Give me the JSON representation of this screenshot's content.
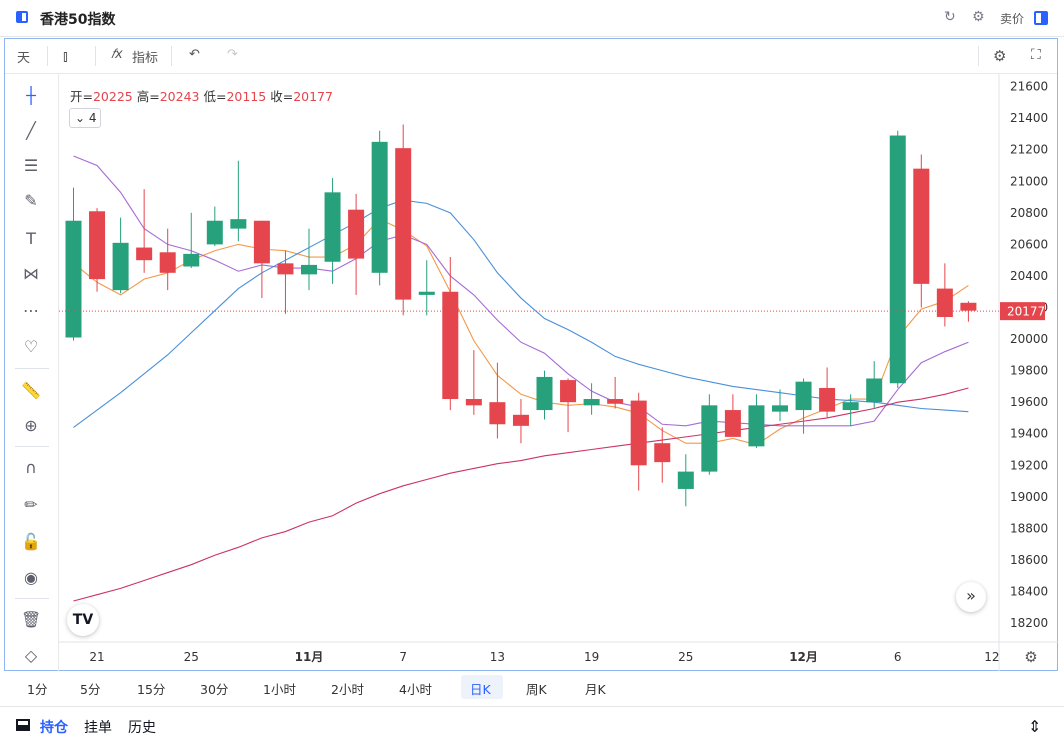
{
  "header": {
    "title": "香港50指数",
    "sell_label": "卖价"
  },
  "toolbar": {
    "interval": "天",
    "indicators_label": "指标"
  },
  "legend": {
    "open_label": "开=",
    "open": "20225",
    "high_label": "高=",
    "high": "20243",
    "low_label": "低=",
    "low": "20115",
    "close_label": "收=",
    "close": "20177",
    "ma_count": "4"
  },
  "tv_logo": "TV",
  "periods": [
    "1分",
    "5分",
    "15分",
    "30分",
    "1小时",
    "2小时",
    "4小时",
    "日K",
    "周K",
    "月K"
  ],
  "active_period": "日K",
  "bottom_tabs": [
    "持仓",
    "挂单",
    "历史"
  ],
  "colors": {
    "up": "#26a17b",
    "down": "#e5454c",
    "ma_orange": "#f2994a",
    "ma_purple": "#a66bd6",
    "ma_blue": "#4a90d9",
    "ma_crimson": "#cc3366",
    "accent": "#2962ff"
  },
  "chart_data": {
    "type": "candlestick",
    "y_ticks": [
      18200,
      18400,
      18600,
      18800,
      19000,
      19200,
      19400,
      19600,
      19800,
      20000,
      20200,
      20400,
      20600,
      20800,
      21000,
      21200,
      21400,
      21600
    ],
    "ylim": [
      18080,
      21680
    ],
    "x_labels": [
      {
        "i": 1,
        "label": "21",
        "bold": false
      },
      {
        "i": 5,
        "label": "25",
        "bold": false
      },
      {
        "i": 10,
        "label": "11月",
        "bold": true
      },
      {
        "i": 14,
        "label": "7",
        "bold": false
      },
      {
        "i": 18,
        "label": "13",
        "bold": false
      },
      {
        "i": 22,
        "label": "19",
        "bold": false
      },
      {
        "i": 26,
        "label": "25",
        "bold": false
      },
      {
        "i": 31,
        "label": "12月",
        "bold": true
      },
      {
        "i": 35,
        "label": "6",
        "bold": false
      },
      {
        "i": 39,
        "label": "12",
        "bold": false
      }
    ],
    "current_price": "20177",
    "candles": [
      {
        "o": 20010,
        "h": 20960,
        "l": 19990,
        "c": 20750
      },
      {
        "o": 20810,
        "h": 20830,
        "l": 20300,
        "c": 20380
      },
      {
        "o": 20310,
        "h": 20770,
        "l": 20290,
        "c": 20610
      },
      {
        "o": 20580,
        "h": 20950,
        "l": 20420,
        "c": 20500
      },
      {
        "o": 20550,
        "h": 20700,
        "l": 20310,
        "c": 20420
      },
      {
        "o": 20460,
        "h": 20800,
        "l": 20450,
        "c": 20540
      },
      {
        "o": 20600,
        "h": 20840,
        "l": 20590,
        "c": 20750
      },
      {
        "o": 20700,
        "h": 21130,
        "l": 20620,
        "c": 20760
      },
      {
        "o": 20750,
        "h": 20750,
        "l": 20260,
        "c": 20480
      },
      {
        "o": 20480,
        "h": 20560,
        "l": 20160,
        "c": 20410
      },
      {
        "o": 20410,
        "h": 20700,
        "l": 20310,
        "c": 20470
      },
      {
        "o": 20490,
        "h": 21020,
        "l": 20350,
        "c": 20930
      },
      {
        "o": 20820,
        "h": 20920,
        "l": 20280,
        "c": 20510
      },
      {
        "o": 20420,
        "h": 21320,
        "l": 20340,
        "c": 21250
      },
      {
        "o": 21210,
        "h": 21360,
        "l": 20150,
        "c": 20250
      },
      {
        "o": 20280,
        "h": 20500,
        "l": 20150,
        "c": 20300
      },
      {
        "o": 20300,
        "h": 20520,
        "l": 19550,
        "c": 19620
      },
      {
        "o": 19620,
        "h": 19930,
        "l": 19520,
        "c": 19580
      },
      {
        "o": 19600,
        "h": 19850,
        "l": 19370,
        "c": 19460
      },
      {
        "o": 19520,
        "h": 19620,
        "l": 19340,
        "c": 19450
      },
      {
        "o": 19550,
        "h": 19800,
        "l": 19490,
        "c": 19760
      },
      {
        "o": 19740,
        "h": 19750,
        "l": 19410,
        "c": 19600
      },
      {
        "o": 19580,
        "h": 19720,
        "l": 19520,
        "c": 19620
      },
      {
        "o": 19620,
        "h": 19760,
        "l": 19560,
        "c": 19590
      },
      {
        "o": 19610,
        "h": 19660,
        "l": 19040,
        "c": 19200
      },
      {
        "o": 19340,
        "h": 19440,
        "l": 19090,
        "c": 19220
      },
      {
        "o": 19050,
        "h": 19270,
        "l": 18940,
        "c": 19160
      },
      {
        "o": 19160,
        "h": 19650,
        "l": 19140,
        "c": 19580
      },
      {
        "o": 19550,
        "h": 19650,
        "l": 19410,
        "c": 19380
      },
      {
        "o": 19320,
        "h": 19650,
        "l": 19310,
        "c": 19580
      },
      {
        "o": 19540,
        "h": 19680,
        "l": 19480,
        "c": 19580
      },
      {
        "o": 19550,
        "h": 19750,
        "l": 19400,
        "c": 19730
      },
      {
        "o": 19690,
        "h": 19820,
        "l": 19500,
        "c": 19540
      },
      {
        "o": 19550,
        "h": 19650,
        "l": 19450,
        "c": 19600
      },
      {
        "o": 19600,
        "h": 19860,
        "l": 19560,
        "c": 19750
      },
      {
        "o": 19720,
        "h": 21320,
        "l": 19690,
        "c": 21290
      },
      {
        "o": 21080,
        "h": 21170,
        "l": 20200,
        "c": 20350
      },
      {
        "o": 20320,
        "h": 20480,
        "l": 20080,
        "c": 20140
      },
      {
        "o": 20230,
        "h": 20240,
        "l": 20110,
        "c": 20180
      }
    ],
    "ma_series": [
      {
        "key": "ma_orange",
        "values": [
          20480,
          20360,
          20280,
          20380,
          20420,
          20500,
          20560,
          20600,
          20570,
          20560,
          20520,
          20520,
          20600,
          20760,
          20690,
          20590,
          20300,
          19990,
          19770,
          19650,
          19600,
          19580,
          19590,
          19570,
          19530,
          19420,
          19340,
          19340,
          19370,
          19330,
          19430,
          19500,
          19560,
          19620,
          19620,
          20010,
          20190,
          20240,
          20340
        ]
      },
      {
        "key": "ma_purple",
        "values": [
          21160,
          21100,
          20930,
          20700,
          20600,
          20560,
          20500,
          20430,
          20470,
          20450,
          20450,
          20430,
          20510,
          20620,
          20660,
          20600,
          20400,
          20280,
          20120,
          19980,
          19910,
          19780,
          19670,
          19600,
          19570,
          19460,
          19450,
          19480,
          19470,
          19460,
          19450,
          19450,
          19450,
          19450,
          19480,
          19680,
          19850,
          19920,
          19980
        ]
      },
      {
        "key": "ma_blue",
        "values": [
          19440,
          19550,
          19660,
          19780,
          19900,
          20040,
          20180,
          20320,
          20420,
          20500,
          20580,
          20660,
          20740,
          20830,
          20880,
          20860,
          20800,
          20630,
          20420,
          20260,
          20130,
          20060,
          19980,
          19890,
          19840,
          19800,
          19760,
          19730,
          19700,
          19680,
          19660,
          19640,
          19620,
          19610,
          19600,
          19580,
          19560,
          19550,
          19540
        ]
      },
      {
        "key": "ma_crimson",
        "values": [
          18340,
          18380,
          18420,
          18470,
          18520,
          18570,
          18630,
          18680,
          18740,
          18780,
          18840,
          18880,
          18960,
          19020,
          19070,
          19110,
          19150,
          19180,
          19210,
          19230,
          19260,
          19280,
          19300,
          19320,
          19340,
          19360,
          19380,
          19400,
          19420,
          19440,
          19460,
          19480,
          19500,
          19530,
          19560,
          19600,
          19620,
          19650,
          19690
        ]
      }
    ]
  }
}
